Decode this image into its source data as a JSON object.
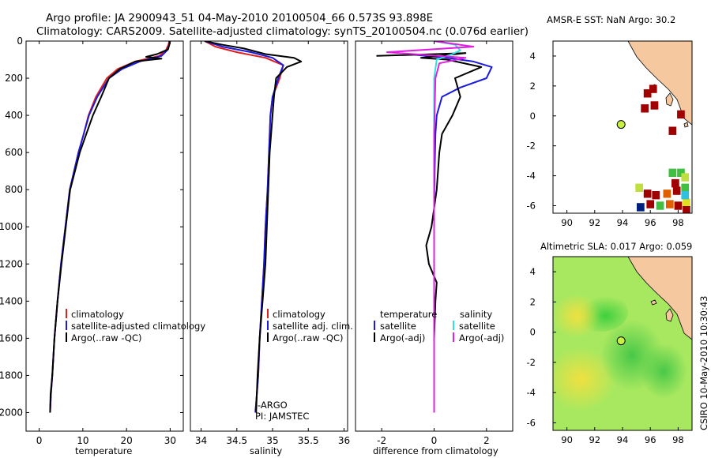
{
  "header": {
    "line1": "Argo profile: JA 2900943_51 04-May-2010 20100504_66 0.573S 93.898E",
    "line2": "Climatology: CARS2009. Satellite-adjusted climatology: synTS_20100504.nc (0.076d earlier)"
  },
  "colors": {
    "climatology": "#e02020",
    "satellite": "#1a1ae0",
    "argo": "#000000",
    "salinity_satellite": "#30e0e0",
    "salinity_argo": "#e020e0",
    "land": "#f5c8a0",
    "float_marker": "#c8f040"
  },
  "chart_data": [
    {
      "type": "line",
      "id": "temperature",
      "xlabel": "temperature",
      "ylabel": "",
      "xlim": [
        -3,
        33
      ],
      "ylim": [
        2100,
        0
      ],
      "xticks": [
        0,
        10,
        20,
        30
      ],
      "yticks": [
        0,
        200,
        400,
        600,
        800,
        1000,
        1200,
        1400,
        1600,
        1800,
        2000
      ],
      "legend": [
        "climatology",
        "satellite-adjusted climatology",
        "Argo(..raw -QC)"
      ],
      "legend_position": "lower-right",
      "series": [
        {
          "name": "climatology",
          "color": "#e02020",
          "x": [
            29.8,
            29.6,
            29.0,
            27.5,
            22.0,
            18.0,
            15.5,
            13.0,
            11.3,
            10.2,
            9.0,
            8.0,
            7.0,
            6.0,
            5.0,
            4.2,
            3.5,
            3.0,
            2.7,
            2.5
          ],
          "y": [
            0,
            20,
            50,
            80,
            110,
            150,
            200,
            300,
            400,
            500,
            600,
            700,
            800,
            1000,
            1200,
            1400,
            1600,
            1800,
            1900,
            2000
          ]
        },
        {
          "name": "satellite-adjusted climatology",
          "color": "#1a1ae0",
          "x": [
            30.0,
            29.8,
            29.3,
            28.0,
            23.0,
            19.0,
            16.0,
            13.3,
            11.4,
            10.2,
            9.0,
            8.0,
            7.0,
            6.0,
            5.0,
            4.2,
            3.5,
            3.0,
            2.7,
            2.5
          ],
          "y": [
            0,
            20,
            50,
            80,
            110,
            150,
            200,
            300,
            400,
            500,
            600,
            700,
            800,
            1000,
            1200,
            1400,
            1600,
            1800,
            1900,
            2000
          ]
        },
        {
          "name": "Argo(..raw -QC)",
          "color": "#000000",
          "x": [
            29.9,
            29.8,
            29.5,
            27.0,
            24.5,
            28.0,
            22.0,
            18.5,
            16.0,
            14.2,
            12.3,
            10.8,
            9.3,
            8.2,
            7.1,
            6.1,
            5.1,
            4.2,
            3.5,
            3.0,
            2.6,
            2.5
          ],
          "y": [
            0,
            20,
            45,
            70,
            85,
            95,
            110,
            150,
            200,
            300,
            400,
            500,
            600,
            700,
            800,
            1000,
            1200,
            1400,
            1600,
            1800,
            1900,
            2000
          ]
        }
      ]
    },
    {
      "type": "line",
      "id": "salinity",
      "xlabel": "salinity",
      "ylabel": "",
      "xlim": [
        33.85,
        36.05
      ],
      "ylim": [
        2100,
        0
      ],
      "xticks": [
        34,
        34.5,
        35,
        35.5,
        36
      ],
      "xtick_labels": [
        "34",
        "34.5",
        "35",
        "35.5",
        "36"
      ],
      "legend": [
        "climatology",
        "satellite adj. clim.",
        "Argo(..raw -QC)"
      ],
      "legend_position": "lower-right",
      "annotation": [
        "J-ARGO",
        "PI: JAMSTEC"
      ],
      "series": [
        {
          "name": "climatology",
          "color": "#e02020",
          "x": [
            34.05,
            34.2,
            34.5,
            34.9,
            35.15,
            35.1,
            35.0,
            34.97,
            34.95,
            34.93,
            34.9,
            34.88,
            34.85,
            34.82,
            34.8,
            34.78,
            34.76
          ],
          "y": [
            0,
            30,
            60,
            90,
            130,
            200,
            300,
            400,
            600,
            800,
            1000,
            1200,
            1400,
            1600,
            1800,
            1900,
            2000
          ]
        },
        {
          "name": "satellite adj. clim.",
          "color": "#1a1ae0",
          "x": [
            34.05,
            34.3,
            34.7,
            35.0,
            35.15,
            35.08,
            35.0,
            34.97,
            34.95,
            34.93,
            34.9,
            34.88,
            34.85,
            34.82,
            34.8,
            34.78,
            34.76
          ],
          "y": [
            0,
            30,
            60,
            90,
            130,
            200,
            300,
            400,
            600,
            800,
            1000,
            1200,
            1400,
            1600,
            1800,
            1900,
            2000
          ]
        },
        {
          "name": "Argo(..raw -QC)",
          "color": "#000000",
          "x": [
            34.05,
            34.3,
            34.6,
            34.9,
            35.3,
            35.4,
            35.2,
            35.05,
            35.02,
            35.0,
            34.98,
            34.96,
            34.94,
            34.92,
            34.9,
            34.86,
            34.82,
            34.79,
            34.77
          ],
          "y": [
            0,
            20,
            40,
            70,
            90,
            110,
            140,
            200,
            300,
            400,
            500,
            600,
            800,
            1000,
            1200,
            1400,
            1600,
            1800,
            2000
          ]
        }
      ]
    },
    {
      "type": "line",
      "id": "difference",
      "xlabel": "difference from climatology",
      "ylabel": "",
      "xlim": [
        -3,
        3
      ],
      "ylim": [
        2100,
        0
      ],
      "xticks": [
        -2,
        0,
        2
      ],
      "legend": [
        "temperature",
        "satellite",
        "Argo(-adj)",
        "salinity",
        "satellite",
        "Argo(-adj)"
      ],
      "legend_position": "lower",
      "series": [
        {
          "name": "temperature satellite",
          "color": "#1a1ae0",
          "x": [
            -1.0,
            0.5,
            1.5,
            2.2,
            2.0,
            1.0,
            0.3,
            0.1,
            0.05,
            0.02,
            0.0,
            0.0,
            0.0,
            0.0,
            0.0
          ],
          "y": [
            70,
            90,
            110,
            140,
            200,
            250,
            300,
            400,
            500,
            700,
            900,
            1200,
            1500,
            1800,
            2000
          ]
        },
        {
          "name": "temperature Argo(-adj)",
          "color": "#000000",
          "x": [
            -2.2,
            1.2,
            -0.5,
            0.5,
            1.8,
            0.8,
            1.0,
            0.7,
            0.3,
            0.2,
            0.1,
            -0.1,
            -0.3,
            -0.2,
            0.1,
            0.05,
            0.0,
            0.0,
            0.0
          ],
          "y": [
            80,
            65,
            90,
            100,
            140,
            200,
            300,
            400,
            500,
            600,
            800,
            1000,
            1100,
            1200,
            1300,
            1400,
            1600,
            1800,
            2000
          ]
        },
        {
          "name": "salinity satellite",
          "color": "#30e0e0",
          "x": [
            0.0,
            0.8,
            1.0,
            0.7,
            0.1,
            0.0,
            0.0,
            0.0,
            0.0,
            0.0,
            0.0
          ],
          "y": [
            0,
            20,
            50,
            70,
            100,
            200,
            500,
            800,
            1200,
            1600,
            2000
          ]
        },
        {
          "name": "salinity Argo(-adj)",
          "color": "#e020e0",
          "x": [
            0.0,
            1.5,
            -1.8,
            1.2,
            0.2,
            0.05,
            0.0,
            0.0,
            0.0
          ],
          "y": [
            0,
            30,
            60,
            90,
            120,
            200,
            500,
            1000,
            2000
          ]
        }
      ]
    },
    {
      "type": "heatmap",
      "id": "sst-map",
      "title": "AMSR-E SST: NaN Argo: 30.2",
      "xlim": [
        89,
        99
      ],
      "ylim": [
        -6.5,
        5
      ],
      "xticks": [
        90,
        92,
        94,
        96,
        98
      ],
      "yticks": [
        -6,
        -4,
        -2,
        0,
        2,
        4
      ],
      "float_location": [
        93.898,
        -0.573
      ],
      "cells": [
        {
          "lon": 95.8,
          "lat": 1.5,
          "color": "#a00000"
        },
        {
          "lon": 96.2,
          "lat": 1.8,
          "color": "#a00000"
        },
        {
          "lon": 95.6,
          "lat": 0.5,
          "color": "#a00000"
        },
        {
          "lon": 96.3,
          "lat": 0.7,
          "color": "#a00000"
        },
        {
          "lon": 98.2,
          "lat": 0.1,
          "color": "#a00000"
        },
        {
          "lon": 97.6,
          "lat": -1.0,
          "color": "#a00000"
        },
        {
          "lon": 97.6,
          "lat": -3.8,
          "color": "#40c040"
        },
        {
          "lon": 98.2,
          "lat": -3.8,
          "color": "#40c040"
        },
        {
          "lon": 98.5,
          "lat": -4.1,
          "color": "#c0e040"
        },
        {
          "lon": 95.2,
          "lat": -4.8,
          "color": "#c0e040"
        },
        {
          "lon": 95.8,
          "lat": -5.2,
          "color": "#a00000"
        },
        {
          "lon": 96.4,
          "lat": -5.3,
          "color": "#a00000"
        },
        {
          "lon": 97.2,
          "lat": -5.2,
          "color": "#e06000"
        },
        {
          "lon": 97.9,
          "lat": -5.0,
          "color": "#a00000"
        },
        {
          "lon": 98.5,
          "lat": -4.8,
          "color": "#40c040"
        },
        {
          "lon": 95.3,
          "lat": -6.1,
          "color": "#002080"
        },
        {
          "lon": 96.0,
          "lat": -5.9,
          "color": "#a00000"
        },
        {
          "lon": 96.7,
          "lat": -6.0,
          "color": "#40c040"
        },
        {
          "lon": 97.4,
          "lat": -5.9,
          "color": "#e06000"
        },
        {
          "lon": 98.0,
          "lat": -6.0,
          "color": "#a00000"
        },
        {
          "lon": 98.6,
          "lat": -5.8,
          "color": "#e0e020"
        },
        {
          "lon": 98.6,
          "lat": -6.3,
          "color": "#a00000"
        },
        {
          "lon": 97.8,
          "lat": -4.5,
          "color": "#a00000"
        },
        {
          "lon": 98.5,
          "lat": -5.3,
          "color": "#30c0e0"
        }
      ]
    },
    {
      "type": "heatmap",
      "id": "sla-map",
      "title": "Altimetric SLA: 0.017 Argo: 0.059",
      "xlim": [
        89,
        99
      ],
      "ylim": [
        -6.5,
        5
      ],
      "xticks": [
        90,
        92,
        94,
        96,
        98
      ],
      "yticks": [
        -6,
        -4,
        -2,
        0,
        2,
        4
      ],
      "float_location": [
        93.898,
        -0.573
      ],
      "side_label": "CSIRO 10-May-2010 10:30:43"
    }
  ]
}
